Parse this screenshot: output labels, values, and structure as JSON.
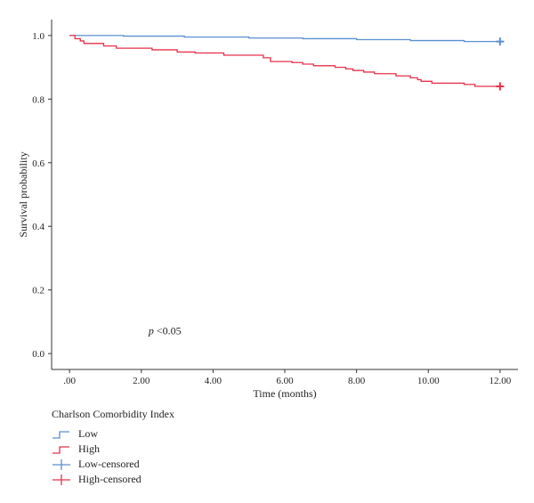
{
  "chart_data": {
    "type": "line",
    "xlabel": "Time (months)",
    "ylabel": "Survival probability",
    "xlim": [
      -0.5,
      12.5
    ],
    "ylim": [
      -0.05,
      1.05
    ],
    "x_ticks": [
      {
        "value": 0,
        "label": ".00"
      },
      {
        "value": 2,
        "label": "2.00"
      },
      {
        "value": 4,
        "label": "4.00"
      },
      {
        "value": 6,
        "label": "6.00"
      },
      {
        "value": 8,
        "label": "8.00"
      },
      {
        "value": 10,
        "label": "10.00"
      },
      {
        "value": 12,
        "label": "12.00"
      }
    ],
    "y_ticks": [
      {
        "value": 0.0,
        "label": "0.0"
      },
      {
        "value": 0.2,
        "label": "0.2"
      },
      {
        "value": 0.4,
        "label": "0.4"
      },
      {
        "value": 0.6,
        "label": "0.6"
      },
      {
        "value": 0.8,
        "label": "0.8"
      },
      {
        "value": 1.0,
        "label": "1.0"
      }
    ],
    "grid": false,
    "annotation": {
      "italic": "p",
      "text": " <0.05",
      "x": 2.2,
      "y": 0.06
    },
    "series": [
      {
        "name": "Low",
        "color": "#5b8fd0",
        "steps": [
          [
            0,
            1.0
          ],
          [
            1.5,
            0.998
          ],
          [
            3.2,
            0.995
          ],
          [
            5.0,
            0.992
          ],
          [
            6.5,
            0.99
          ],
          [
            8.0,
            0.987
          ],
          [
            9.5,
            0.984
          ],
          [
            11.0,
            0.981
          ],
          [
            12.0,
            0.981
          ]
        ],
        "censored": [
          [
            12.0,
            0.981
          ]
        ]
      },
      {
        "name": "High",
        "color": "#e8304a",
        "steps": [
          [
            0,
            1.0
          ],
          [
            0.15,
            0.99
          ],
          [
            0.3,
            0.983
          ],
          [
            0.4,
            0.975
          ],
          [
            0.95,
            0.967
          ],
          [
            1.3,
            0.96
          ],
          [
            2.3,
            0.955
          ],
          [
            3.0,
            0.948
          ],
          [
            3.5,
            0.945
          ],
          [
            4.3,
            0.938
          ],
          [
            5.4,
            0.93
          ],
          [
            5.6,
            0.918
          ],
          [
            6.2,
            0.915
          ],
          [
            6.5,
            0.91
          ],
          [
            6.8,
            0.905
          ],
          [
            7.4,
            0.9
          ],
          [
            7.7,
            0.895
          ],
          [
            7.9,
            0.89
          ],
          [
            8.2,
            0.885
          ],
          [
            8.5,
            0.88
          ],
          [
            9.1,
            0.873
          ],
          [
            9.5,
            0.867
          ],
          [
            9.7,
            0.861
          ],
          [
            9.8,
            0.856
          ],
          [
            10.1,
            0.85
          ],
          [
            11.0,
            0.846
          ],
          [
            11.3,
            0.84
          ],
          [
            12.0,
            0.84
          ]
        ],
        "censored": [
          [
            12.0,
            0.84
          ]
        ]
      }
    ]
  },
  "legend": {
    "title": "Charlson Comorbidity Index",
    "items": [
      {
        "label": "Low",
        "color": "#5b8fd0",
        "symbol": "step"
      },
      {
        "label": "High",
        "color": "#e8304a",
        "symbol": "step"
      },
      {
        "label": "Low-censored",
        "color": "#5b8fd0",
        "symbol": "cross"
      },
      {
        "label": "High-censored",
        "color": "#e8304a",
        "symbol": "cross"
      }
    ]
  }
}
